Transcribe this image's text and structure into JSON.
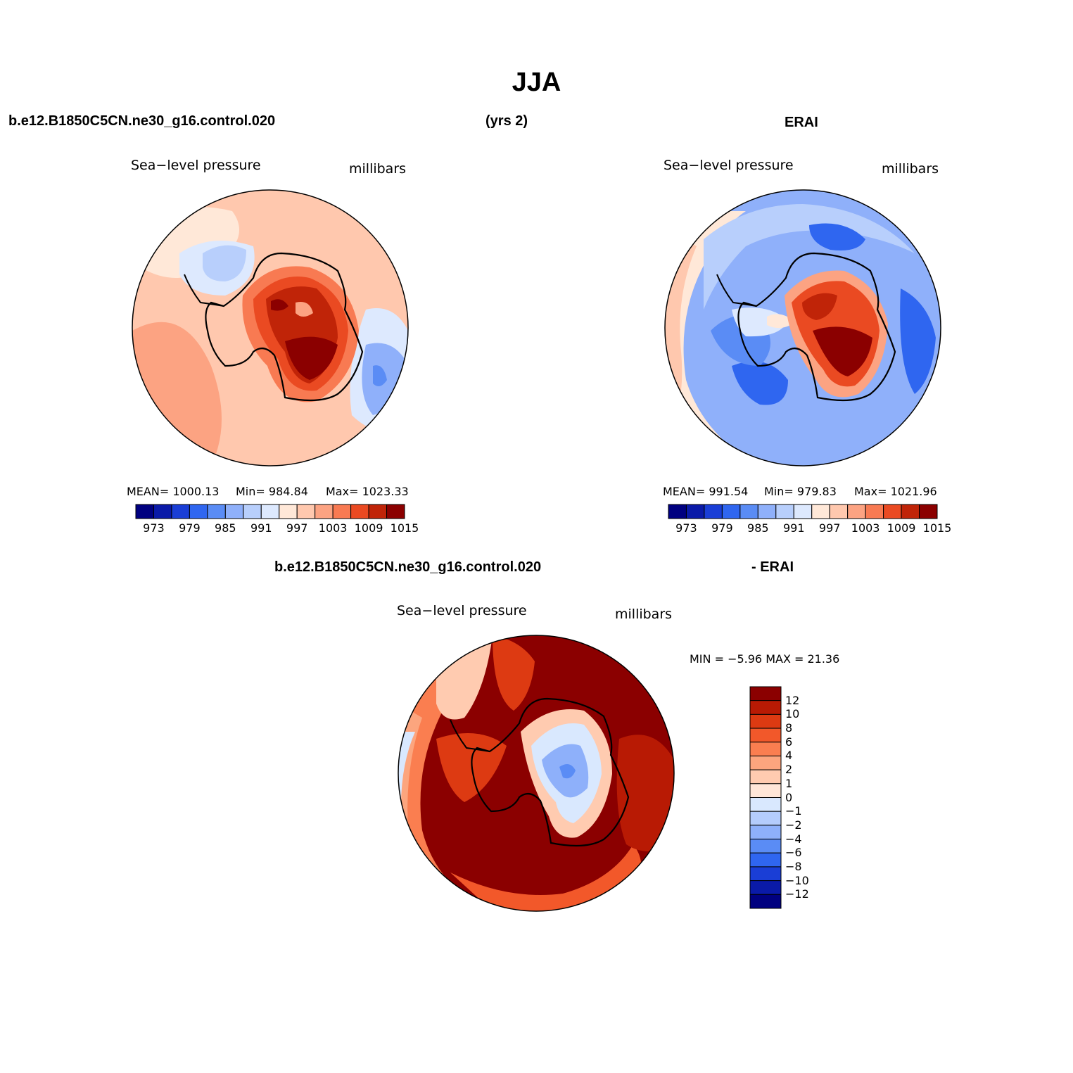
{
  "title": "JJA",
  "header": {
    "case": "b.e12.B1850C5CN.ne30_g16.control.020",
    "years": "(yrs 2)",
    "obs": "ERAI"
  },
  "diff_header": {
    "case": "b.e12.B1850C5CN.ne30_g16.control.020",
    "obs": "- ERAI"
  },
  "panels": [
    {
      "variable": "Sea−level pressure",
      "units": "millibars",
      "stats": {
        "mean": "MEAN=  1000.13",
        "min": "Min=  984.84",
        "max": "Max=  1023.33"
      },
      "colorbar_ticks": [
        "973",
        "979",
        "985",
        "991",
        "997",
        "1003",
        "1009",
        "1015"
      ]
    },
    {
      "variable": "Sea−level pressure",
      "units": "millibars",
      "stats": {
        "mean": "MEAN=  991.54",
        "min": "Min=  979.83",
        "max": "Max=  1021.96"
      },
      "colorbar_ticks": [
        "973",
        "979",
        "985",
        "991",
        "997",
        "1003",
        "1009",
        "1015"
      ]
    },
    {
      "variable": "Sea−level pressure",
      "units": "millibars",
      "stats": {
        "minmax": "MIN =    −5.96  MAX =    21.36"
      },
      "colorbar_ticks": [
        "12",
        "10",
        "8",
        "6",
        "4",
        "2",
        "1",
        "0",
        "−1",
        "−2",
        "−4",
        "−6",
        "−8",
        "−10",
        "−12"
      ]
    }
  ],
  "palette": [
    "#000080",
    "#0a1aa8",
    "#1a3ed6",
    "#2f66f0",
    "#5a8cf5",
    "#8fb0fa",
    "#b8cffc",
    "#dde9fe",
    "#ffe8d8",
    "#ffc8ae",
    "#fca382",
    "#f87a52",
    "#ea4a22",
    "#c02408",
    "#8b0000"
  ],
  "diff_palette": [
    "#8b0000",
    "#b81a04",
    "#dd3a12",
    "#f2582a",
    "#fa7e50",
    "#fca57e",
    "#ffcbb0",
    "#ffe6d8",
    "#d9e8fe",
    "#b4ccfc",
    "#8eb0fa",
    "#5a8cf5",
    "#2f66f0",
    "#1a3ed6",
    "#0a1aa8",
    "#000080"
  ]
}
